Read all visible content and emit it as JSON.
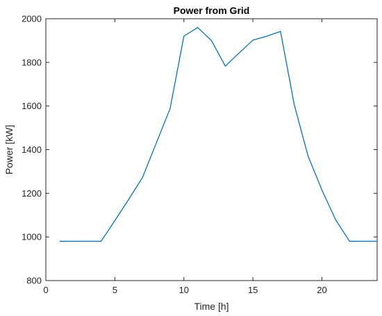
{
  "chart_data": {
    "type": "line",
    "title": "Power from Grid",
    "xlabel": "Time [h]",
    "ylabel": "Power [kW]",
    "xlim": [
      0,
      24
    ],
    "ylim": [
      800,
      2000
    ],
    "xticks": [
      0,
      5,
      10,
      15,
      20
    ],
    "yticks": [
      800,
      1000,
      1200,
      1400,
      1600,
      1800,
      2000
    ],
    "grid": false,
    "series": [
      {
        "x": [
          1,
          2,
          3,
          4,
          5,
          6,
          7,
          8,
          9,
          10,
          11,
          12,
          13,
          14,
          15,
          16,
          17,
          18,
          19,
          20,
          21,
          22,
          23,
          24
        ],
        "values": [
          980,
          980,
          980,
          980,
          1075,
          1172,
          1272,
          1430,
          1588,
          1920,
          1960,
          1900,
          1783,
          1843,
          1902,
          1920,
          1942,
          1605,
          1370,
          1215,
          1078,
          980,
          980,
          980
        ]
      }
    ],
    "colors": {
      "line": "#0072BD",
      "axis": "#262626",
      "background": "#ffffff"
    }
  }
}
